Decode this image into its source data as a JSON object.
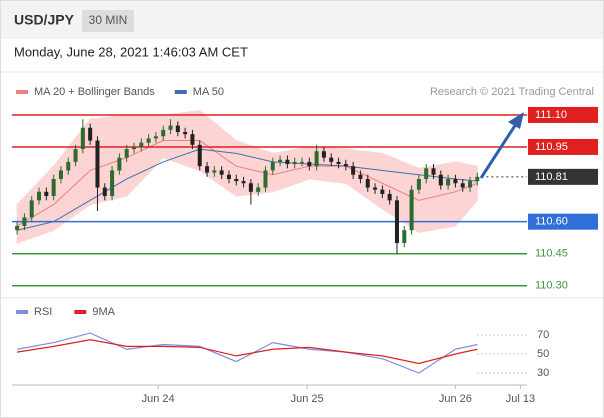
{
  "chart_data": {
    "type": "candlestick",
    "title": "USD/JPY",
    "timeframe": "30 MIN",
    "subtitle": "Monday, June 28, 2021 1:46:03 AM CET",
    "source": "Research © 2021 Trading Central",
    "up_color": "#2e6b2e",
    "down_color": "#222222",
    "ylim": [
      110.28,
      111.17
    ],
    "xlim": [
      -0.7,
      69.8
    ],
    "xticks": [
      {
        "value": 19.3,
        "label": "Jun 24"
      },
      {
        "value": 39.7,
        "label": "Jun 25"
      },
      {
        "value": 60,
        "label": "Jun 26"
      },
      {
        "value": 68.9,
        "label": "Jul 13"
      }
    ],
    "open": [
      110.56,
      110.58,
      110.62,
      110.7,
      110.74,
      110.72,
      110.8,
      110.84,
      110.88,
      110.94,
      111.04,
      110.98,
      110.76,
      110.72,
      110.84,
      110.9,
      110.94,
      110.95,
      110.97,
      110.99,
      111.0,
      111.03,
      111.05,
      111.02,
      111.01,
      110.96,
      110.86,
      110.83,
      110.84,
      110.82,
      110.8,
      110.79,
      110.78,
      110.74,
      110.76,
      110.84,
      110.88,
      110.89,
      110.87,
      110.88,
      110.88,
      110.86,
      110.93,
      110.9,
      110.88,
      110.87,
      110.86,
      110.82,
      110.8,
      110.76,
      110.75,
      110.73,
      110.7,
      110.5,
      110.56,
      110.75,
      110.8,
      110.85,
      110.82,
      110.77,
      110.8,
      110.78,
      110.76,
      110.79
    ],
    "high": [
      110.6,
      110.64,
      110.72,
      110.76,
      110.76,
      110.82,
      110.86,
      110.9,
      110.96,
      111.08,
      111.06,
      111.0,
      110.78,
      110.86,
      110.92,
      110.96,
      110.97,
      110.99,
      111.01,
      111.02,
      111.05,
      111.08,
      111.07,
      111.04,
      111.03,
      110.98,
      110.88,
      110.86,
      110.86,
      110.84,
      110.82,
      110.81,
      110.8,
      110.78,
      110.86,
      110.9,
      110.91,
      110.91,
      110.9,
      110.9,
      110.9,
      110.96,
      110.95,
      110.92,
      110.9,
      110.89,
      110.88,
      110.84,
      110.82,
      110.78,
      110.77,
      110.75,
      110.72,
      110.58,
      110.77,
      110.82,
      110.87,
      110.87,
      110.84,
      110.82,
      110.82,
      110.8,
      110.81,
      110.83
    ],
    "low": [
      110.54,
      110.56,
      110.6,
      110.68,
      110.7,
      110.7,
      110.78,
      110.82,
      110.86,
      110.92,
      110.96,
      110.65,
      110.7,
      110.7,
      110.82,
      110.88,
      110.92,
      110.93,
      110.95,
      110.97,
      110.98,
      111.01,
      111.0,
      110.99,
      110.94,
      110.84,
      110.81,
      110.81,
      110.8,
      110.78,
      110.77,
      110.76,
      110.68,
      110.72,
      110.74,
      110.82,
      110.86,
      110.85,
      110.85,
      110.86,
      110.84,
      110.84,
      110.88,
      110.86,
      110.85,
      110.84,
      110.8,
      110.78,
      110.74,
      110.73,
      110.71,
      110.68,
      110.45,
      110.48,
      110.54,
      110.73,
      110.78,
      110.8,
      110.75,
      110.75,
      110.76,
      110.74,
      110.74,
      110.77
    ],
    "close": [
      110.58,
      110.62,
      110.7,
      110.74,
      110.72,
      110.8,
      110.84,
      110.88,
      110.94,
      111.04,
      110.98,
      110.76,
      110.72,
      110.84,
      110.9,
      110.94,
      110.95,
      110.97,
      110.99,
      111.0,
      111.03,
      111.05,
      111.02,
      111.01,
      110.96,
      110.86,
      110.83,
      110.84,
      110.82,
      110.8,
      110.79,
      110.78,
      110.74,
      110.76,
      110.84,
      110.88,
      110.89,
      110.87,
      110.88,
      110.88,
      110.86,
      110.93,
      110.9,
      110.88,
      110.87,
      110.86,
      110.82,
      110.8,
      110.76,
      110.75,
      110.73,
      110.7,
      110.5,
      110.56,
      110.75,
      110.8,
      110.85,
      110.82,
      110.77,
      110.8,
      110.78,
      110.76,
      110.79,
      110.81
    ],
    "overlay": {
      "x": [
        0,
        5,
        10,
        15,
        20,
        25,
        30,
        35,
        40,
        45,
        50,
        55,
        60,
        63
      ],
      "series": [
        {
          "name": "MA 20 + Bollinger Bands",
          "color": "#f08080",
          "band_color": "#fcd4d4",
          "values": [
            110.58,
            110.68,
            110.84,
            110.9,
            110.98,
            110.98,
            110.86,
            110.82,
            110.86,
            110.86,
            110.78,
            110.7,
            110.74,
            110.78
          ],
          "upper": [
            110.68,
            110.86,
            111.08,
            111.1,
            111.1,
            111.12,
            110.98,
            110.92,
            110.95,
            110.94,
            110.92,
            110.85,
            110.88,
            110.86
          ],
          "lower": [
            110.5,
            110.56,
            110.68,
            110.72,
            110.9,
            110.84,
            110.72,
            110.74,
            110.8,
            110.78,
            110.66,
            110.55,
            110.58,
            110.7
          ]
        },
        {
          "name": "MA 50",
          "color": "#3f6fb0",
          "values": [
            110.56,
            110.6,
            110.7,
            110.8,
            110.88,
            110.94,
            110.92,
            110.88,
            110.87,
            110.86,
            110.84,
            110.82,
            110.8,
            110.79
          ]
        }
      ]
    },
    "levels": [
      {
        "value": 111.1,
        "label": "111.10",
        "color": "#e02020",
        "box": true,
        "dashed": false
      },
      {
        "value": 110.95,
        "label": "110.95",
        "color": "#e02020",
        "box": true,
        "dashed": false
      },
      {
        "value": 110.81,
        "label": "110.81",
        "color": "#333333",
        "box": true,
        "dashed": true
      },
      {
        "value": 110.6,
        "label": "110.60",
        "color": "#2f6fd6",
        "box": true,
        "dashed": false
      },
      {
        "value": 110.45,
        "label": "110.45",
        "color": "#3a9a3a",
        "box": false,
        "dashed": false
      },
      {
        "value": 110.3,
        "label": "110.30",
        "color": "#3a9a3a",
        "box": false,
        "dashed": false
      }
    ],
    "rsi": {
      "ylim": [
        20,
        80
      ],
      "yticks": [
        70,
        50,
        30
      ],
      "x": [
        0,
        5,
        10,
        15,
        20,
        25,
        30,
        35,
        40,
        45,
        50,
        55,
        60,
        63
      ],
      "series": [
        {
          "name": "RSI",
          "color": "#7b8fe0",
          "values": [
            55,
            62,
            72,
            55,
            60,
            58,
            42,
            62,
            55,
            52,
            45,
            30,
            55,
            60
          ]
        },
        {
          "name": "9MA",
          "color": "#e02020",
          "values": [
            52,
            58,
            65,
            58,
            58,
            57,
            48,
            55,
            57,
            52,
            48,
            40,
            50,
            55
          ]
        }
      ]
    }
  }
}
